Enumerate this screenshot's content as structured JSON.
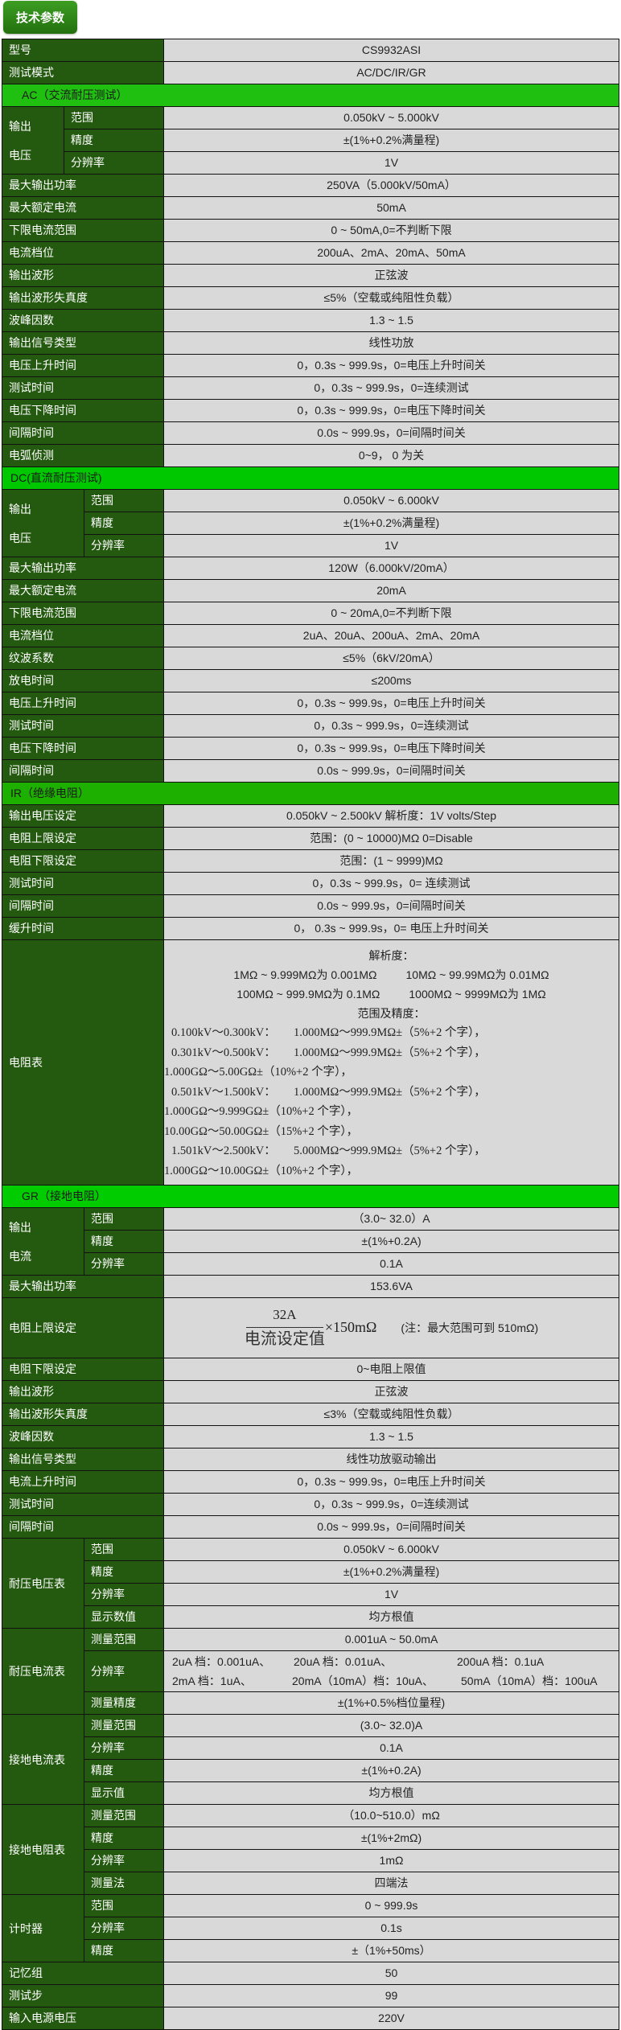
{
  "header": {
    "title": "技术参数"
  },
  "colors": {
    "label_bg": "#245a10",
    "value_bg": "#d9d9d9",
    "section_ac": "#20c010",
    "section_dc": "#00c800",
    "section_ir": "#1db000",
    "section_gr": "#00cc00",
    "title_button": "#2f8a1a"
  },
  "sections": [
    {
      "title": null,
      "rows": [
        {
          "label": "型号",
          "value": "CS9932ASI"
        },
        {
          "label": "测试模式",
          "value": "AC/DC/IR/GR"
        }
      ]
    },
    {
      "title": "AC（交流耐压测试）",
      "rows": [
        {
          "group": [
            "输出",
            "电压"
          ],
          "items": [
            {
              "label": "范围",
              "value": "0.050kV ~ 5.000kV"
            },
            {
              "label": "精度",
              "value": "±(1%+0.2%满量程)"
            },
            {
              "label": "分辨率",
              "value": "1V"
            }
          ]
        },
        {
          "label": "最大输出功率",
          "value": "250VA（5.000kV/50mA）"
        },
        {
          "label": "最大额定电流",
          "value": "50mA"
        },
        {
          "label": "下限电流范围",
          "value": "0 ~ 50mA,0=不判断下限"
        },
        {
          "label": "电流档位",
          "value": "200uA、2mA、20mA、50mA"
        },
        {
          "label": "输出波形",
          "value": "正弦波"
        },
        {
          "label": "输出波形失真度",
          "value": "≤5%（空载或纯阻性负载）"
        },
        {
          "label": "波峰因数",
          "value": "1.3 ~ 1.5"
        },
        {
          "label": "输出信号类型",
          "value": "线性功放"
        },
        {
          "label": "电压上升时间",
          "value": "0，0.3s ~ 999.9s，0=电压上升时间关"
        },
        {
          "label": "测试时间",
          "value": "0，0.3s ~ 999.9s，0=连续测试"
        },
        {
          "label": "电压下降时间",
          "value": "0，0.3s ~ 999.9s，0=电压下降时间关"
        },
        {
          "label": "间隔时间",
          "value": "0.0s ~ 999.9s，0=间隔时间关"
        },
        {
          "label": "电弧侦测",
          "value": "0~9，  0 为关"
        }
      ]
    },
    {
      "title": "DC(直流耐压测试)",
      "rows": [
        {
          "group": [
            "输出",
            "电压"
          ],
          "items": [
            {
              "label": "范围",
              "value": "0.050kV ~ 6.000kV"
            },
            {
              "label": "精度",
              "value": "±(1%+0.2%满量程)"
            },
            {
              "label": "分辨率",
              "value": "1V"
            }
          ]
        },
        {
          "label": "最大输出功率",
          "value": "120W（6.000kV/20mA）"
        },
        {
          "label": "最大额定电流",
          "value": "20mA"
        },
        {
          "label": "下限电流范围",
          "value": "0 ~ 20mA,0=不判断下限"
        },
        {
          "label": "电流档位",
          "value": "2uA、20uA、200uA、2mA、20mA"
        },
        {
          "label": "纹波系数",
          "value": "≤5%（6kV/20mA）"
        },
        {
          "label": "放电时间",
          "value": "≤200ms"
        },
        {
          "label": "电压上升时间",
          "value": "0，0.3s ~ 999.9s，0=电压上升时间关"
        },
        {
          "label": "测试时间",
          "value": "0，0.3s ~ 999.9s，0=连续测试"
        },
        {
          "label": "电压下降时间",
          "value": "0，0.3s ~ 999.9s，0=电压下降时间关"
        },
        {
          "label": "间隔时间",
          "value": "0.0s ~ 999.9s，0=间隔时间关"
        }
      ]
    },
    {
      "title": "IR（绝缘电阻）",
      "rows": [
        {
          "label": "输出电压设定",
          "value": "0.050kV ~ 2.500kV    解析度：1V volts/Step"
        },
        {
          "label": "电阻上限设定",
          "value": "范围：(0 ~ 10000)MΩ   0=Disable"
        },
        {
          "label": "电阻下限设定",
          "value": "范围：(1 ~ 9999)MΩ"
        },
        {
          "label": "测试时间",
          "value": "0，0.3s ~ 999.9s，0= 连续测试"
        },
        {
          "label": "间隔时间",
          "value": "0.0s ~ 999.9s，0=间隔时间关"
        },
        {
          "label": "缓升时间",
          "value": "0，   0.3s ~ 999.9s，0= 电压上升时间关"
        },
        {
          "label": "电阻表",
          "ir": {
            "resolution_title": "解析度：",
            "resolution": [
              [
                "1MΩ ~ 9.999MΩ为 0.001MΩ",
                "10MΩ ~ 99.99MΩ为 0.01MΩ"
              ],
              [
                "100MΩ ~ 999.9MΩ为 0.1MΩ",
                "1000MΩ ~ 9999MΩ为 1MΩ"
              ]
            ],
            "accuracy_title": "范围及精度：",
            "accuracy": [
              {
                "range": "0.100kV～0.300kV：",
                "items": [
                  "1.000MΩ～999.9MΩ±（5%+2 个字），"
                ]
              },
              {
                "range": "0.301kV～0.500kV：",
                "items": [
                  "1.000MΩ～999.9MΩ±（5%+2 个字），",
                  "1.000GΩ～5.00GΩ±（10%+2 个字），"
                ]
              },
              {
                "range": "0.501kV～1.500kV：",
                "items": [
                  "1.000MΩ～999.9MΩ±（5%+2 个字），",
                  "1.000GΩ～9.999GΩ±（10%+2 个字），",
                  "10.00GΩ～50.00GΩ±（15%+2 个字），"
                ]
              },
              {
                "range": "1.501kV～2.500kV：",
                "items": [
                  "5.000MΩ～999.9MΩ±（5%+2 个字），",
                  " 1.000GΩ～10.00GΩ±（10%+2 个字），"
                ]
              }
            ]
          }
        }
      ]
    },
    {
      "title": "GR（接地电阻）",
      "rows": [
        {
          "group": [
            "输出",
            "电流"
          ],
          "items": [
            {
              "label": "范围",
              "value": "（3.0~ 32.0）A"
            },
            {
              "label": "精度",
              "value": "±(1%+0.2A)"
            },
            {
              "label": "分辨率",
              "value": "0.1A"
            }
          ]
        },
        {
          "label": "最大输出功率",
          "value": "153.6VA"
        },
        {
          "label": "电阻上限设定",
          "formula": {
            "numerator": "32A",
            "denominator": "电流设定值",
            "multiplier": "×150mΩ",
            "note": "(注：最大范围可到 510mΩ)"
          }
        },
        {
          "label": "电阻下限设定",
          "value": "0~电阻上限值"
        },
        {
          "label": "输出波形",
          "value": "正弦波"
        },
        {
          "label": "输出波形失真度",
          "value": "≤3%（空载或纯阻性负载）"
        },
        {
          "label": "波峰因数",
          "value": "1.3 ~ 1.5"
        },
        {
          "label": "输出信号类型",
          "value": "线性功放驱动输出"
        },
        {
          "label": "电流上升时间",
          "value": "0，0.3s ~ 999.9s，0=电压上升时间关"
        },
        {
          "label": "测试时间",
          "value": "0，0.3s ~ 999.9s，0=连续测试"
        },
        {
          "label": "间隔时间",
          "value": "0.0s ~ 999.9s，0=间隔时间关"
        },
        {
          "group": [
            "耐压电压表"
          ],
          "items": [
            {
              "label": "范围",
              "value": "0.050kV ~ 6.000kV"
            },
            {
              "label": "精度",
              "value": "±(1%+0.2%满量程)"
            },
            {
              "label": "分辨率",
              "value": "1V"
            },
            {
              "label": "显示数值",
              "value": "均方根值"
            }
          ]
        },
        {
          "group": [
            "耐压电流表"
          ],
          "items": [
            {
              "label": "测量范围",
              "value": "0.001uA  ~  50.0mA"
            },
            {
              "label": "分辨率",
              "grid": [
                [
                  "2uA 档：0.001uA、",
                  "20uA 档：0.01uA、",
                  "200uA 档：0.1uA"
                ],
                [
                  "2mA 档：1uA、",
                  "20mA（10mA）档：10uA、",
                  "50mA（10mA）档：100uA"
                ]
              ]
            },
            {
              "label": "测量精度",
              "value": "±(1%+0.5%档位量程)"
            }
          ]
        },
        {
          "group": [
            "接地电流表"
          ],
          "items": [
            {
              "label": "测量范围",
              "value": "(3.0~ 32.0)A"
            },
            {
              "label": "分辨率",
              "value": "0.1A"
            },
            {
              "label": "精度",
              "value": "±(1%+0.2A)"
            },
            {
              "label": "显示值",
              "value": "均方根值"
            }
          ]
        },
        {
          "group": [
            "接地电阻表"
          ],
          "items": [
            {
              "label": "测量范围",
              "value": "（10.0~510.0）mΩ"
            },
            {
              "label": "精度",
              "value": "±(1%+2mΩ)"
            },
            {
              "label": "分辨率",
              "value": "1mΩ"
            },
            {
              "label": "测量法",
              "value": "四端法"
            }
          ]
        },
        {
          "group": [
            "计时器"
          ],
          "items": [
            {
              "label": "范围",
              "value": "0 ~ 999.9s"
            },
            {
              "label": "分辨率",
              "value": "0.1s"
            },
            {
              "label": "精度",
              "value": "±（1%+50ms）"
            }
          ]
        },
        {
          "label": "记忆组",
          "value": "50"
        },
        {
          "label": "测试步",
          "value": "99"
        },
        {
          "label": "输入电源电压",
          "value": "220V"
        }
      ]
    }
  ]
}
